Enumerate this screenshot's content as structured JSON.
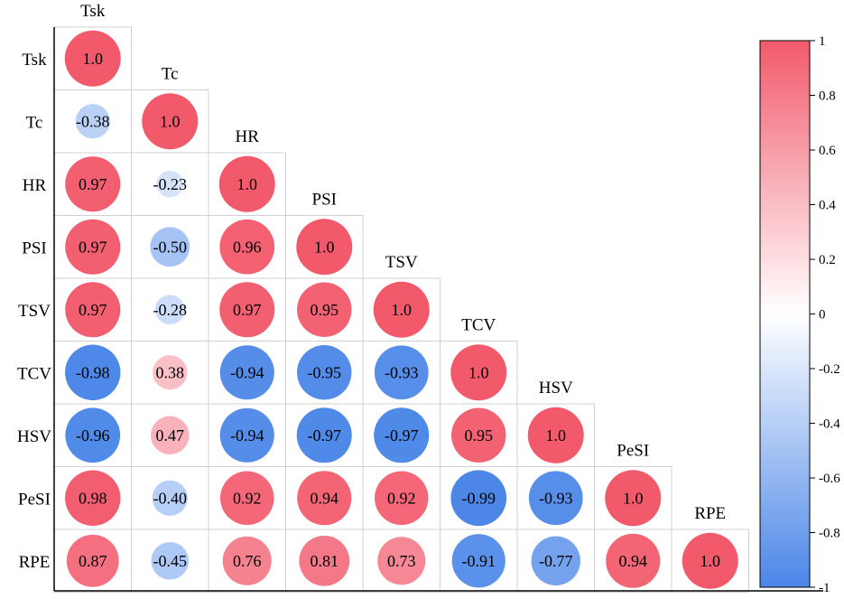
{
  "chart_data": {
    "type": "heatmap",
    "variables": [
      "Tsk",
      "Tc",
      "HR",
      "PSI",
      "TSV",
      "TCV",
      "HSV",
      "PeSI",
      "RPE"
    ],
    "matrix": [
      [
        1.0
      ],
      [
        -0.38,
        1.0
      ],
      [
        0.97,
        -0.23,
        1.0
      ],
      [
        0.97,
        -0.5,
        0.96,
        1.0
      ],
      [
        0.97,
        -0.28,
        0.97,
        0.95,
        1.0
      ],
      [
        -0.98,
        0.38,
        -0.94,
        -0.95,
        -0.93,
        1.0
      ],
      [
        -0.96,
        0.47,
        -0.94,
        -0.97,
        -0.97,
        0.95,
        1.0
      ],
      [
        0.98,
        -0.4,
        0.92,
        0.94,
        0.92,
        -0.99,
        -0.93,
        1.0
      ],
      [
        0.87,
        -0.45,
        0.76,
        0.81,
        0.73,
        -0.91,
        -0.77,
        0.94,
        1.0
      ]
    ],
    "cell_labels": [
      [
        "1.0"
      ],
      [
        "-0.38",
        "1.0"
      ],
      [
        "0.97",
        "-0.23",
        "1.0"
      ],
      [
        "0.97",
        "-0.50",
        "0.96",
        "1.0"
      ],
      [
        "0.97",
        "-0.28",
        "0.97",
        "0.95",
        "1.0"
      ],
      [
        "-0.98",
        "0.38",
        "-0.94",
        "-0.95",
        "-0.93",
        "1.0"
      ],
      [
        "-0.96",
        "0.47",
        "-0.94",
        "-0.97",
        "-0.97",
        "0.95",
        "1.0"
      ],
      [
        "0.98",
        "-0.40",
        "0.92",
        "0.94",
        "0.92",
        "-0.99",
        "-0.93",
        "1.0"
      ],
      [
        "0.87",
        "-0.45",
        "0.76",
        "0.81",
        "0.73",
        "-0.91",
        "-0.77",
        "0.94",
        "1.0"
      ]
    ],
    "shape": "lower-triangle-circles",
    "colorbar": {
      "range": [
        -1,
        1
      ],
      "ticks": [
        1,
        0.8,
        0.6,
        0.4,
        0.2,
        0,
        -0.2,
        -0.4,
        -0.6,
        -0.8,
        -1
      ],
      "tick_labels": [
        "1",
        "0.8",
        "0.6",
        "0.4",
        "0.2",
        "0",
        "-0.2",
        "-0.4",
        "-0.6",
        "-0.8",
        "-1"
      ],
      "colors": {
        "positive": "#f25a6c",
        "zero": "#ffffff",
        "negative": "#4a86e8"
      },
      "placement": "right"
    },
    "grid": true
  }
}
